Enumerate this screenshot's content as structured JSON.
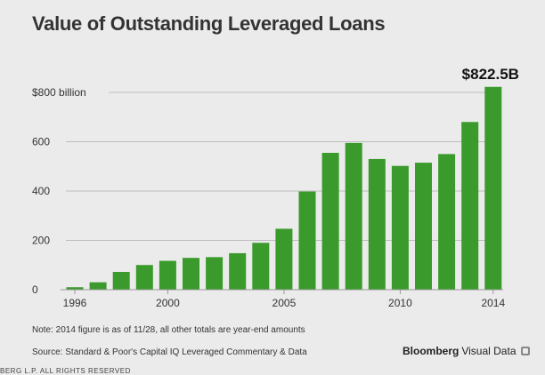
{
  "header": {
    "title": "Value of Outstanding Leveraged Loans"
  },
  "colors": {
    "bar": "#3a9a2b",
    "background": "#ebebeb",
    "gridline": "#bdbdbd"
  },
  "chart_data": {
    "type": "bar",
    "title": "Value of Outstanding Leveraged Loans",
    "xlabel": "",
    "ylabel": "",
    "categories": [
      "1996",
      "1997",
      "1998",
      "1999",
      "2000",
      "2001",
      "2002",
      "2003",
      "2004",
      "2005",
      "2006",
      "2007",
      "2008",
      "2009",
      "2010",
      "2011",
      "2012",
      "2013",
      "2014"
    ],
    "values": [
      10,
      30,
      72,
      100,
      117,
      129,
      132,
      148,
      190,
      247,
      398,
      555,
      595,
      530,
      502,
      515,
      550,
      680,
      822.5
    ],
    "ylim": [
      0,
      822.5
    ],
    "y_ticks": [
      0,
      200,
      400,
      600,
      800
    ],
    "y_tick_labels": [
      "0",
      "200",
      "400",
      "600",
      "$800 billion"
    ],
    "x_tick_labels": [
      "1996",
      "2000",
      "2005",
      "2010",
      "2014"
    ],
    "grid": true,
    "legend": "none",
    "annotations": [
      {
        "category": "2014",
        "text": "$822.5B"
      }
    ]
  },
  "footer": {
    "note": "Note: 2014 figure is as of 11/28, all other totals are year-end amounts",
    "source": "Source: Standard & Poor's Capital IQ Leveraged Commentary & Data",
    "brand_bold": "Bloomberg",
    "brand_light": "Visual Data",
    "brand_icon": "bloomberg-logo-icon",
    "copyright": "BERG L.P. ALL RIGHTS RESERVED"
  }
}
